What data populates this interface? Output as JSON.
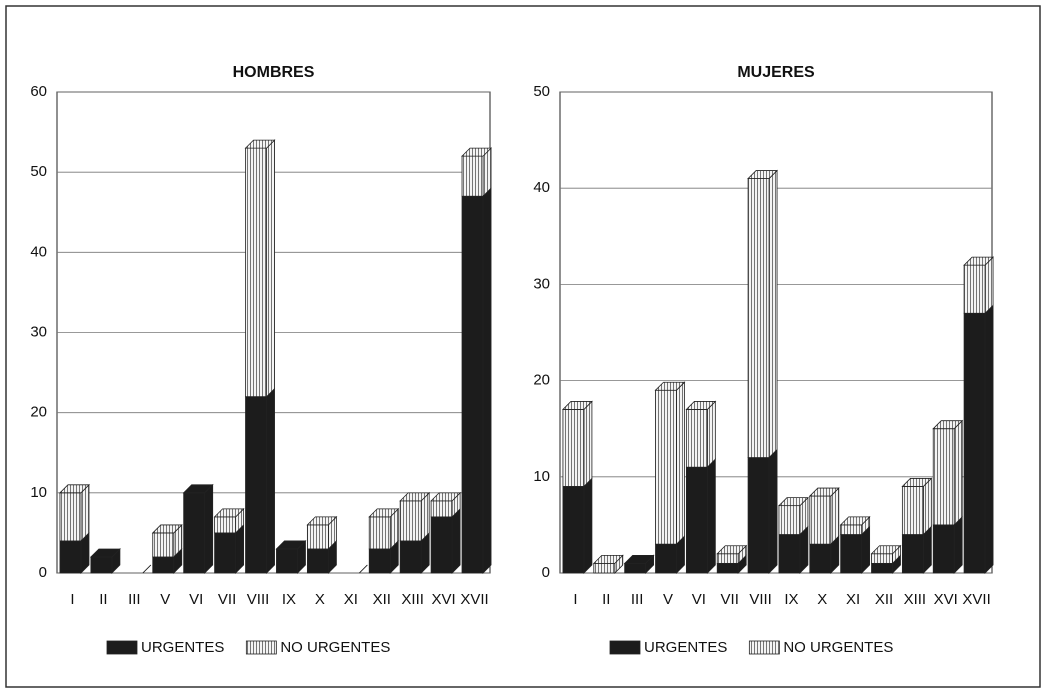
{
  "chart_data": [
    {
      "type": "bar",
      "stacked": true,
      "title": "HOMBRES",
      "categories": [
        "I",
        "II",
        "III",
        "V",
        "VI",
        "VII",
        "VIII",
        "IX",
        "X",
        "XI",
        "XII",
        "XIII",
        "XVI",
        "XVII"
      ],
      "series": [
        {
          "name": "URGENTES",
          "color": "#1c1c1c",
          "values": [
            4,
            2,
            0,
            2,
            10,
            5,
            22,
            3,
            3,
            0,
            3,
            4,
            7,
            47
          ]
        },
        {
          "name": "NO URGENTES",
          "color": "#f4f4f4",
          "hatch": true,
          "values": [
            6,
            0,
            0,
            3,
            0,
            2,
            31,
            0,
            3,
            0,
            4,
            5,
            2,
            5
          ]
        }
      ],
      "ylim": [
        0,
        60
      ],
      "yticks": [
        0,
        10,
        20,
        30,
        40,
        50,
        60
      ],
      "grid": true,
      "legend": "bottom"
    },
    {
      "type": "bar",
      "stacked": true,
      "title": "MUJERES",
      "categories": [
        "I",
        "II",
        "III",
        "V",
        "VI",
        "VII",
        "VIII",
        "IX",
        "X",
        "XI",
        "XII",
        "XIII",
        "XVI",
        "XVII"
      ],
      "series": [
        {
          "name": "URGENTES",
          "color": "#1c1c1c",
          "values": [
            9,
            0,
            1,
            3,
            11,
            1,
            12,
            4,
            3,
            4,
            1,
            4,
            5,
            27
          ]
        },
        {
          "name": "NO URGENTES",
          "color": "#f4f4f4",
          "hatch": true,
          "values": [
            8,
            1,
            0,
            16,
            6,
            1,
            29,
            3,
            5,
            1,
            1,
            5,
            10,
            5
          ]
        }
      ],
      "ylim": [
        0,
        50
      ],
      "yticks": [
        0,
        10,
        20,
        30,
        40,
        50
      ],
      "grid": true,
      "legend": "bottom"
    }
  ]
}
